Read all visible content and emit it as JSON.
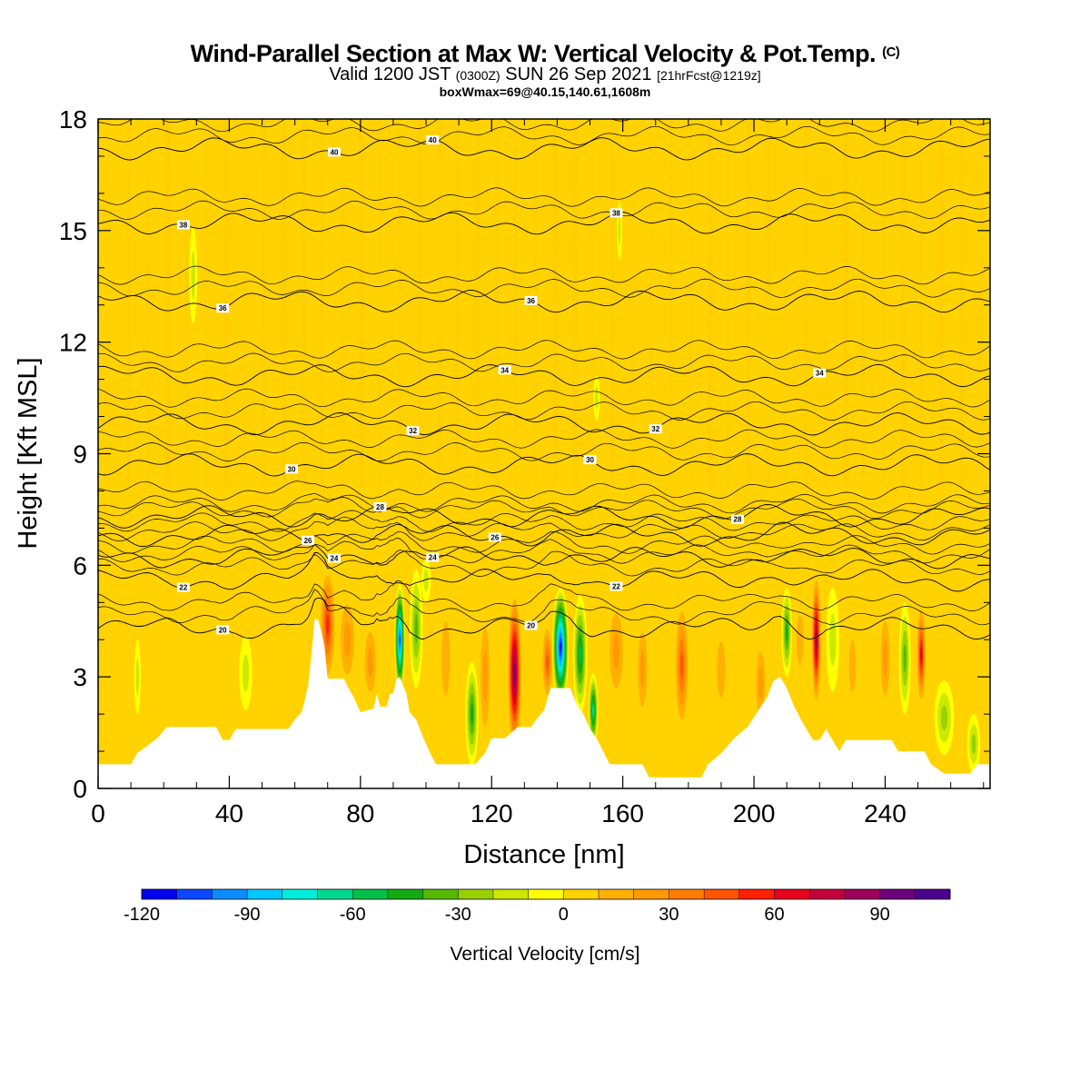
{
  "header": {
    "title": "Wind-Parallel Section at Max W: Vertical Velocity & Pot.Temp.",
    "copyright_tag": "(C)",
    "valid_prefix": "Valid 1200 JST",
    "valid_utc": "(0300Z)",
    "valid_date": "SUN 26 Sep 2021",
    "forecast_info": "[21hrFcst@1219z]",
    "box_info": "boxWmax=69@40.15,140.61,1608m"
  },
  "chart_data": {
    "type": "heatmap",
    "xlabel": "Distance [nm]",
    "ylabel": "Height [Kft MSL]",
    "xlim": [
      0,
      272
    ],
    "ylim": [
      0,
      18
    ],
    "x_ticks": [
      0,
      40,
      80,
      120,
      160,
      200,
      240
    ],
    "y_ticks": [
      0,
      3,
      6,
      9,
      12,
      15,
      18
    ],
    "x_tick_labels": [
      "0",
      "40",
      "80",
      "120",
      "160",
      "200",
      "240"
    ],
    "y_tick_labels": [
      "0",
      "3",
      "6",
      "9",
      "12",
      "15",
      "18"
    ],
    "background_value": 0,
    "terrain": [
      [
        0,
        0.65
      ],
      [
        10,
        0.65
      ],
      [
        12,
        0.95
      ],
      [
        18,
        1.35
      ],
      [
        21,
        1.65
      ],
      [
        36,
        1.65
      ],
      [
        38,
        1.3
      ],
      [
        40,
        1.3
      ],
      [
        42,
        1.6
      ],
      [
        58,
        1.6
      ],
      [
        60,
        1.85
      ],
      [
        62,
        2.05
      ],
      [
        63,
        2.35
      ],
      [
        64,
        2.75
      ],
      [
        65,
        3.55
      ],
      [
        66,
        4.55
      ],
      [
        67,
        4.55
      ],
      [
        68,
        4.25
      ],
      [
        69,
        3.85
      ],
      [
        70,
        2.95
      ],
      [
        70.5,
        2.95
      ],
      [
        72,
        2.95
      ],
      [
        75,
        2.95
      ],
      [
        76,
        2.75
      ],
      [
        78,
        2.45
      ],
      [
        80,
        2.05
      ],
      [
        84,
        2.15
      ],
      [
        85,
        2.55
      ],
      [
        86,
        2.2
      ],
      [
        88,
        2.2
      ],
      [
        89,
        2.55
      ],
      [
        90,
        2.55
      ],
      [
        91,
        2.95
      ],
      [
        92,
        3.0
      ],
      [
        94,
        2.55
      ],
      [
        95,
        2.05
      ],
      [
        97,
        1.85
      ],
      [
        99,
        1.4
      ],
      [
        101,
        1.0
      ],
      [
        103,
        0.65
      ],
      [
        115,
        0.65
      ],
      [
        118,
        0.95
      ],
      [
        120,
        1.35
      ],
      [
        124,
        1.35
      ],
      [
        128,
        1.65
      ],
      [
        132,
        1.65
      ],
      [
        134,
        1.9
      ],
      [
        136,
        2.1
      ],
      [
        138,
        2.7
      ],
      [
        144,
        2.7
      ],
      [
        146,
        2.25
      ],
      [
        148,
        2.0
      ],
      [
        150,
        1.6
      ],
      [
        152,
        1.35
      ],
      [
        154,
        1.0
      ],
      [
        156,
        0.65
      ],
      [
        166,
        0.65
      ],
      [
        168,
        0.3
      ],
      [
        184,
        0.3
      ],
      [
        186,
        0.65
      ],
      [
        190,
        0.95
      ],
      [
        194,
        1.35
      ],
      [
        198,
        1.65
      ],
      [
        204,
        2.45
      ],
      [
        206,
        2.9
      ],
      [
        208,
        3.0
      ],
      [
        210,
        2.7
      ],
      [
        212,
        2.25
      ],
      [
        214,
        1.9
      ],
      [
        216,
        1.6
      ],
      [
        218,
        1.3
      ],
      [
        220,
        1.3
      ],
      [
        222,
        1.6
      ],
      [
        224,
        1.3
      ],
      [
        226,
        1.0
      ],
      [
        228,
        1.3
      ],
      [
        242,
        1.3
      ],
      [
        244,
        1.0
      ],
      [
        252,
        1.0
      ],
      [
        254,
        0.65
      ],
      [
        258,
        0.4
      ],
      [
        266,
        0.4
      ],
      [
        268,
        0.65
      ],
      [
        272,
        0.65
      ]
    ],
    "cells": [
      {
        "x": 70,
        "z": 4.4,
        "w": 2.5,
        "h": 1.6,
        "v": 65
      },
      {
        "x": 76,
        "z": 4.0,
        "w": 3.0,
        "h": 1.4,
        "v": 32
      },
      {
        "x": 83,
        "z": 3.4,
        "w": 2.5,
        "h": 1.2,
        "v": 35
      },
      {
        "x": 92,
        "z": 4.0,
        "w": 1.6,
        "h": 1.5,
        "v": -112
      },
      {
        "x": 97,
        "z": 4.3,
        "w": 2.0,
        "h": 1.6,
        "v": -40
      },
      {
        "x": 100,
        "z": 5.6,
        "w": 1.5,
        "h": 0.6,
        "v": -25
      },
      {
        "x": 106,
        "z": 3.5,
        "w": 2.5,
        "h": 2.0,
        "v": 28
      },
      {
        "x": 114,
        "z": 2.0,
        "w": 2.0,
        "h": 1.4,
        "v": -50
      },
      {
        "x": 118,
        "z": 3.0,
        "w": 2.0,
        "h": 2.0,
        "v": 30
      },
      {
        "x": 127,
        "z": 3.1,
        "w": 2.2,
        "h": 2.2,
        "v": 100
      },
      {
        "x": 137,
        "z": 3.4,
        "w": 1.8,
        "h": 1.1,
        "v": 55
      },
      {
        "x": 141,
        "z": 3.8,
        "w": 2.5,
        "h": 1.6,
        "v": -120
      },
      {
        "x": 147,
        "z": 3.6,
        "w": 2.2,
        "h": 1.6,
        "v": -65
      },
      {
        "x": 151,
        "z": 2.1,
        "w": 1.5,
        "h": 1.0,
        "v": -75
      },
      {
        "x": 158,
        "z": 3.7,
        "w": 3.0,
        "h": 1.5,
        "v": 30
      },
      {
        "x": 166,
        "z": 3.2,
        "w": 2.0,
        "h": 1.5,
        "v": 38
      },
      {
        "x": 178,
        "z": 3.3,
        "w": 2.3,
        "h": 1.8,
        "v": 58
      },
      {
        "x": 190,
        "z": 3.2,
        "w": 2.5,
        "h": 1.5,
        "v": 25
      },
      {
        "x": 202,
        "z": 2.8,
        "w": 2.0,
        "h": 1.3,
        "v": 30
      },
      {
        "x": 210,
        "z": 4.2,
        "w": 1.6,
        "h": 1.2,
        "v": -55
      },
      {
        "x": 214,
        "z": 4.0,
        "w": 2.0,
        "h": 1.3,
        "v": 28
      },
      {
        "x": 219,
        "z": 4.0,
        "w": 1.5,
        "h": 1.8,
        "v": 90
      },
      {
        "x": 224,
        "z": 4.0,
        "w": 2.0,
        "h": 1.4,
        "v": -25
      },
      {
        "x": 230,
        "z": 3.3,
        "w": 2.0,
        "h": 1.4,
        "v": 28
      },
      {
        "x": 240,
        "z": 3.5,
        "w": 2.0,
        "h": 1.5,
        "v": 35
      },
      {
        "x": 246,
        "z": 3.5,
        "w": 1.8,
        "h": 1.5,
        "v": -40
      },
      {
        "x": 251,
        "z": 3.6,
        "w": 1.5,
        "h": 1.4,
        "v": 75
      },
      {
        "x": 258,
        "z": 1.9,
        "w": 3.0,
        "h": 1.0,
        "v": -32
      },
      {
        "x": 267,
        "z": 1.2,
        "w": 2.0,
        "h": 0.8,
        "v": -30
      },
      {
        "x": 29,
        "z": 13.8,
        "w": 1.2,
        "h": 1.3,
        "v": -28
      },
      {
        "x": 152,
        "z": 10.5,
        "w": 1.0,
        "h": 0.6,
        "v": -22
      },
      {
        "x": 159,
        "z": 15.0,
        "w": 0.8,
        "h": 0.8,
        "v": -22
      },
      {
        "x": 45,
        "z": 3.1,
        "w": 2.0,
        "h": 1.0,
        "v": -20
      },
      {
        "x": 12,
        "z": 3.0,
        "w": 1.0,
        "h": 1.0,
        "v": -20
      },
      {
        "x": 48,
        "z": 16.0,
        "w": 2.5,
        "h": 2.0,
        "v": 12
      },
      {
        "x": 163,
        "z": 17.0,
        "w": 2.5,
        "h": 1.8,
        "v": 14
      },
      {
        "x": 231,
        "z": 17.2,
        "w": 2.5,
        "h": 1.8,
        "v": 13
      },
      {
        "x": 248,
        "z": 14.0,
        "w": 2.5,
        "h": 1.8,
        "v": 12
      },
      {
        "x": 88,
        "z": 12.5,
        "w": 3.0,
        "h": 2.0,
        "v": 9
      },
      {
        "x": 205,
        "z": 11.0,
        "w": 3.0,
        "h": 2.0,
        "v": 9
      }
    ],
    "theta_contours": [
      {
        "level": 20,
        "z": 4.3,
        "label": "20"
      },
      {
        "level": 22,
        "z": 5.6,
        "label": "22"
      },
      {
        "level": 24,
        "z": 6.2,
        "label": "24"
      },
      {
        "level": 26,
        "z": 6.8,
        "label": "26"
      },
      {
        "level": 28,
        "z": 7.3,
        "label": "28"
      },
      {
        "level": 30,
        "z": 8.7,
        "label": "30"
      },
      {
        "level": 32,
        "z": 9.8,
        "label": "32"
      },
      {
        "level": 34,
        "z": 11.1,
        "label": "34"
      },
      {
        "level": 36,
        "z": 13.1,
        "label": "36"
      },
      {
        "level": 38,
        "z": 15.2,
        "label": "38"
      },
      {
        "level": 40,
        "z": 17.2,
        "label": "40"
      }
    ],
    "colorbar": {
      "title": "Vertical Velocity [cm/s]",
      "min": -120,
      "max": 110,
      "step": 10,
      "tick_values": [
        -120,
        -90,
        -60,
        -30,
        0,
        30,
        60,
        90
      ],
      "tick_labels": [
        "-120",
        "-90",
        "-60",
        "-30",
        "0",
        "30",
        "60",
        "90"
      ],
      "colors": [
        "#0000f0",
        "#0a47ff",
        "#0a8cff",
        "#00c8ff",
        "#00eedd",
        "#00d890",
        "#00c049",
        "#14aa14",
        "#55b900",
        "#98d000",
        "#cde800",
        "#ffff00",
        "#ffd200",
        "#ffb000",
        "#ff9a00",
        "#ff7c00",
        "#ff5500",
        "#ff2000",
        "#e8001e",
        "#c4003c",
        "#9c005a",
        "#6e007c",
        "#4c0090"
      ]
    }
  }
}
